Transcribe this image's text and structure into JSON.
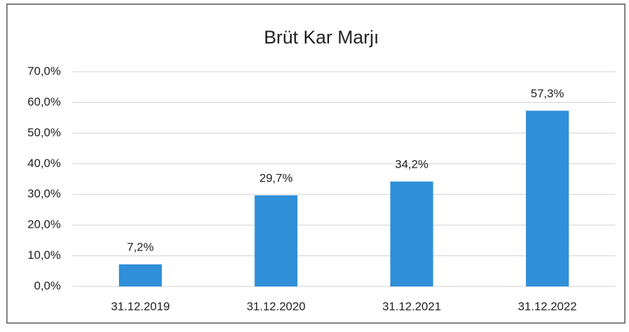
{
  "chart_data": {
    "type": "bar",
    "title": "Brüt Kar Marjı",
    "categories": [
      "31.12.2019",
      "31.12.2020",
      "31.12.2021",
      "31.12.2022"
    ],
    "values": [
      7.2,
      29.7,
      34.2,
      57.3
    ],
    "value_labels": [
      "7,2%",
      "29,7%",
      "34,2%",
      "57,3%"
    ],
    "color": "#2f8fd8",
    "ylim": [
      0,
      70
    ],
    "yticks": [
      {
        "value": 0,
        "label": "0,0%"
      },
      {
        "value": 10,
        "label": "10,0%"
      },
      {
        "value": 20,
        "label": "20,0%"
      },
      {
        "value": 30,
        "label": "30,0%"
      },
      {
        "value": 40,
        "label": "40,0%"
      },
      {
        "value": 50,
        "label": "50,0%"
      },
      {
        "value": 60,
        "label": "60,0%"
      },
      {
        "value": 70,
        "label": "70,0%"
      }
    ],
    "grid": true
  }
}
